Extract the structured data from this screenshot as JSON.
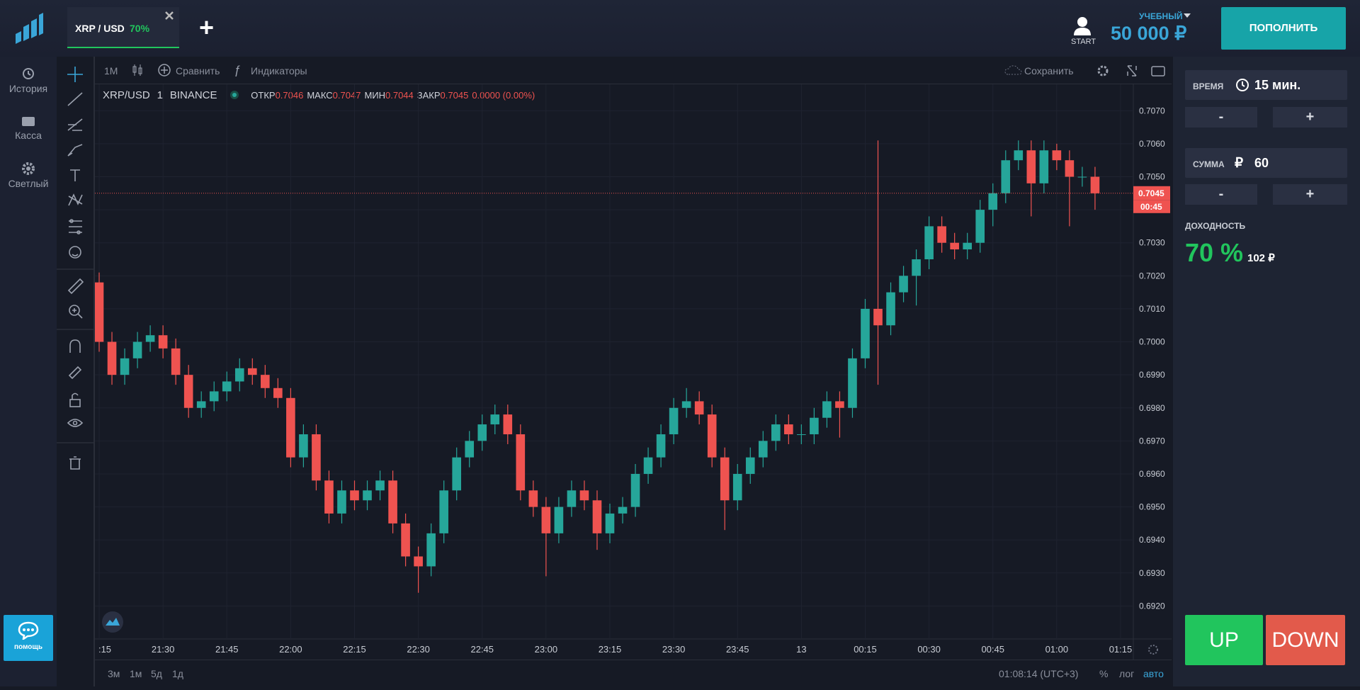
{
  "header": {
    "tab": {
      "pair": "XRP / USD",
      "payout": "70%"
    },
    "add_tab": "+",
    "user": "START",
    "account_type": "УЧЕБНЫЙ",
    "balance": "50 000 ₽",
    "deposit": "ПОПОЛНИТЬ"
  },
  "sidebar": {
    "items": [
      "История",
      "Касса",
      "Светлый"
    ],
    "help": "помощь"
  },
  "toolbar": {
    "interval": "1М",
    "compare": "Сравнить",
    "indicators": "Индикаторы",
    "save": "Сохранить"
  },
  "chart_data": {
    "type": "candlestick",
    "legend": {
      "symbol": "XRP/USD",
      "interval": "1",
      "exchange": "BINANCE",
      "items": [
        {
          "label": "ОТКР",
          "value": 0.7046
        },
        {
          "label": "МАКС",
          "value": 0.7047
        },
        {
          "label": "МИН",
          "value": 0.7044
        },
        {
          "label": "ЗАКР",
          "value": 0.7045
        }
      ],
      "change": "0.0000 (0.00%)"
    },
    "x": [
      "21:15",
      "21:18",
      "21:21",
      "21:24",
      "21:27",
      "21:30",
      "21:33",
      "21:36",
      "21:39",
      "21:42",
      "21:45",
      "21:48",
      "21:51",
      "21:54",
      "21:57",
      "22:00",
      "22:03",
      "22:06",
      "22:09",
      "22:12",
      "22:15",
      "22:18",
      "22:21",
      "22:24",
      "22:27",
      "22:30",
      "22:33",
      "22:36",
      "22:39",
      "22:42",
      "22:45",
      "22:48",
      "22:51",
      "22:54",
      "22:57",
      "23:00",
      "23:03",
      "23:06",
      "23:09",
      "23:12",
      "23:15",
      "23:18",
      "23:21",
      "23:24",
      "23:27",
      "23:30",
      "23:33",
      "23:36",
      "23:39",
      "23:42",
      "23:45",
      "23:48",
      "23:51",
      "23:54",
      "23:57",
      "00:00",
      "00:03",
      "00:06",
      "00:09",
      "00:12",
      "00:15",
      "00:18",
      "00:21",
      "00:24",
      "00:27",
      "00:30",
      "00:33",
      "00:36",
      "00:39",
      "00:42",
      "00:45",
      "00:48",
      "00:51",
      "00:54",
      "00:57",
      "01:00",
      "01:03",
      "01:06",
      "01:09"
    ],
    "open": [
      0.7018,
      0.7,
      0.699,
      0.6995,
      0.7,
      0.7002,
      0.6998,
      0.699,
      0.698,
      0.6982,
      0.6985,
      0.6988,
      0.6992,
      0.699,
      0.6986,
      0.6983,
      0.6965,
      0.6972,
      0.6958,
      0.6948,
      0.6955,
      0.6952,
      0.6955,
      0.6958,
      0.6945,
      0.6935,
      0.6932,
      0.6942,
      0.6955,
      0.6965,
      0.697,
      0.6975,
      0.6978,
      0.6972,
      0.6955,
      0.695,
      0.6942,
      0.695,
      0.6955,
      0.6952,
      0.6942,
      0.6948,
      0.695,
      0.696,
      0.6965,
      0.6972,
      0.698,
      0.6982,
      0.6978,
      0.6965,
      0.6952,
      0.696,
      0.6965,
      0.697,
      0.6975,
      0.6972,
      0.6972,
      0.6977,
      0.6982,
      0.698,
      0.6995,
      0.701,
      0.7005,
      0.7015,
      0.702,
      0.7025,
      0.7035,
      0.703,
      0.7028,
      0.703,
      0.704,
      0.7045,
      0.7055,
      0.7058,
      0.7048,
      0.7058,
      0.7055,
      0.705,
      0.705
    ],
    "high": [
      0.7021,
      0.7003,
      0.6998,
      0.7003,
      0.7005,
      0.7005,
      0.7001,
      0.6993,
      0.6985,
      0.6988,
      0.6991,
      0.6995,
      0.6995,
      0.6993,
      0.6989,
      0.6986,
      0.6975,
      0.6975,
      0.6961,
      0.6958,
      0.6958,
      0.6958,
      0.6961,
      0.6961,
      0.6948,
      0.6938,
      0.6945,
      0.6958,
      0.6968,
      0.6973,
      0.6978,
      0.6981,
      0.6981,
      0.6975,
      0.6958,
      0.6953,
      0.6953,
      0.6958,
      0.6958,
      0.6955,
      0.6951,
      0.6953,
      0.6963,
      0.6968,
      0.6975,
      0.6983,
      0.6986,
      0.6985,
      0.6981,
      0.6968,
      0.6963,
      0.6968,
      0.6973,
      0.6978,
      0.6978,
      0.6975,
      0.698,
      0.6985,
      0.6985,
      0.6998,
      0.7013,
      0.7061,
      0.7018,
      0.7023,
      0.7028,
      0.7038,
      0.7038,
      0.7033,
      0.7033,
      0.7043,
      0.7048,
      0.7058,
      0.7061,
      0.7061,
      0.7061,
      0.706,
      0.7058,
      0.7053,
      0.7053
    ],
    "low": [
      0.6997,
      0.6987,
      0.6987,
      0.6992,
      0.6997,
      0.6995,
      0.6987,
      0.6977,
      0.6977,
      0.6979,
      0.6982,
      0.6985,
      0.6987,
      0.6983,
      0.698,
      0.6962,
      0.6962,
      0.6955,
      0.6945,
      0.6945,
      0.6949,
      0.6949,
      0.6952,
      0.6942,
      0.6932,
      0.6924,
      0.6929,
      0.6939,
      0.6952,
      0.6962,
      0.6967,
      0.6972,
      0.6969,
      0.6952,
      0.6947,
      0.6929,
      0.6939,
      0.6947,
      0.6949,
      0.6937,
      0.6939,
      0.6945,
      0.6947,
      0.6957,
      0.6962,
      0.6969,
      0.6977,
      0.6975,
      0.6962,
      0.6943,
      0.6949,
      0.6957,
      0.6962,
      0.6967,
      0.6969,
      0.6969,
      0.6969,
      0.6974,
      0.6971,
      0.6977,
      0.6992,
      0.6987,
      0.7002,
      0.7012,
      0.7011,
      0.7022,
      0.7027,
      0.7025,
      0.7025,
      0.7027,
      0.7035,
      0.7042,
      0.7052,
      0.7038,
      0.7045,
      0.7052,
      0.7035,
      0.7047,
      0.704
    ],
    "close": [
      0.7,
      0.699,
      0.6995,
      0.7,
      0.7002,
      0.6998,
      0.699,
      0.698,
      0.6982,
      0.6985,
      0.6988,
      0.6992,
      0.699,
      0.6986,
      0.6983,
      0.6965,
      0.6972,
      0.6958,
      0.6948,
      0.6955,
      0.6952,
      0.6955,
      0.6958,
      0.6945,
      0.6935,
      0.6932,
      0.6942,
      0.6955,
      0.6965,
      0.697,
      0.6975,
      0.6978,
      0.6972,
      0.6955,
      0.695,
      0.6942,
      0.695,
      0.6955,
      0.6952,
      0.6942,
      0.6948,
      0.695,
      0.696,
      0.6965,
      0.6972,
      0.698,
      0.6982,
      0.6978,
      0.6965,
      0.6952,
      0.696,
      0.6965,
      0.697,
      0.6975,
      0.6972,
      0.6972,
      0.6977,
      0.6982,
      0.698,
      0.6995,
      0.701,
      0.7005,
      0.7015,
      0.702,
      0.7025,
      0.7035,
      0.703,
      0.7028,
      0.703,
      0.704,
      0.7045,
      0.7055,
      0.7058,
      0.7048,
      0.7058,
      0.7055,
      0.705,
      0.705,
      0.7045
    ],
    "up_color": "#26a69a",
    "down_color": "#ef5350",
    "grid": true,
    "xlim": [
      "21:14",
      "01:18"
    ],
    "xticks": [
      {
        "value": "21:15",
        "label": ":15"
      },
      "21:30",
      "21:45",
      "22:00",
      "22:15",
      "22:30",
      "22:45",
      "23:00",
      "23:15",
      "23:30",
      "23:45",
      {
        "value": "00:00",
        "label": "13"
      },
      "00:15",
      "00:30",
      "00:45",
      "01:00",
      "01:15"
    ],
    "ylim": [
      0.691,
      0.7078
    ],
    "yticks": [
      {
        "value": 0.692,
        "label": "0.6920"
      },
      {
        "value": 0.693,
        "label": "0.6930"
      },
      {
        "value": 0.694,
        "label": "0.6940"
      },
      {
        "value": 0.695,
        "label": "0.6950"
      },
      {
        "value": 0.696,
        "label": "0.6960"
      },
      {
        "value": 0.697,
        "label": "0.6970"
      },
      {
        "value": 0.698,
        "label": "0.6980"
      },
      {
        "value": 0.699,
        "label": "0.6990"
      },
      {
        "value": 0.7,
        "label": "0.7000"
      },
      {
        "value": 0.701,
        "label": "0.7010"
      },
      {
        "value": 0.702,
        "label": "0.7020"
      },
      {
        "value": 0.703,
        "label": "0.7030"
      },
      {
        "value": 0.704,
        "label": "0.7040"
      },
      {
        "value": 0.705,
        "label": "0.7050"
      },
      {
        "value": 0.706,
        "label": "0.7060"
      },
      {
        "value": 0.707,
        "label": "0.7070"
      }
    ],
    "current_price": 0.7045,
    "countdown": "00:45"
  },
  "footer": {
    "ranges": [
      "3м",
      "1м",
      "5д",
      "1д"
    ],
    "clock": "01:08:14 (UTC+3)",
    "scale_options": [
      "%",
      "лог",
      "авто"
    ]
  },
  "panel": {
    "time_label": "ВРЕМЯ",
    "time_value": "15 мин.",
    "amount_label": "СУММА",
    "currency": "₽",
    "amount": 60,
    "minus": "-",
    "plus": "+",
    "yield_label": "ДОХОДНОСТЬ",
    "yield": "70 %",
    "profit": "102 ₽",
    "up": "UP",
    "down": "DOWN"
  }
}
